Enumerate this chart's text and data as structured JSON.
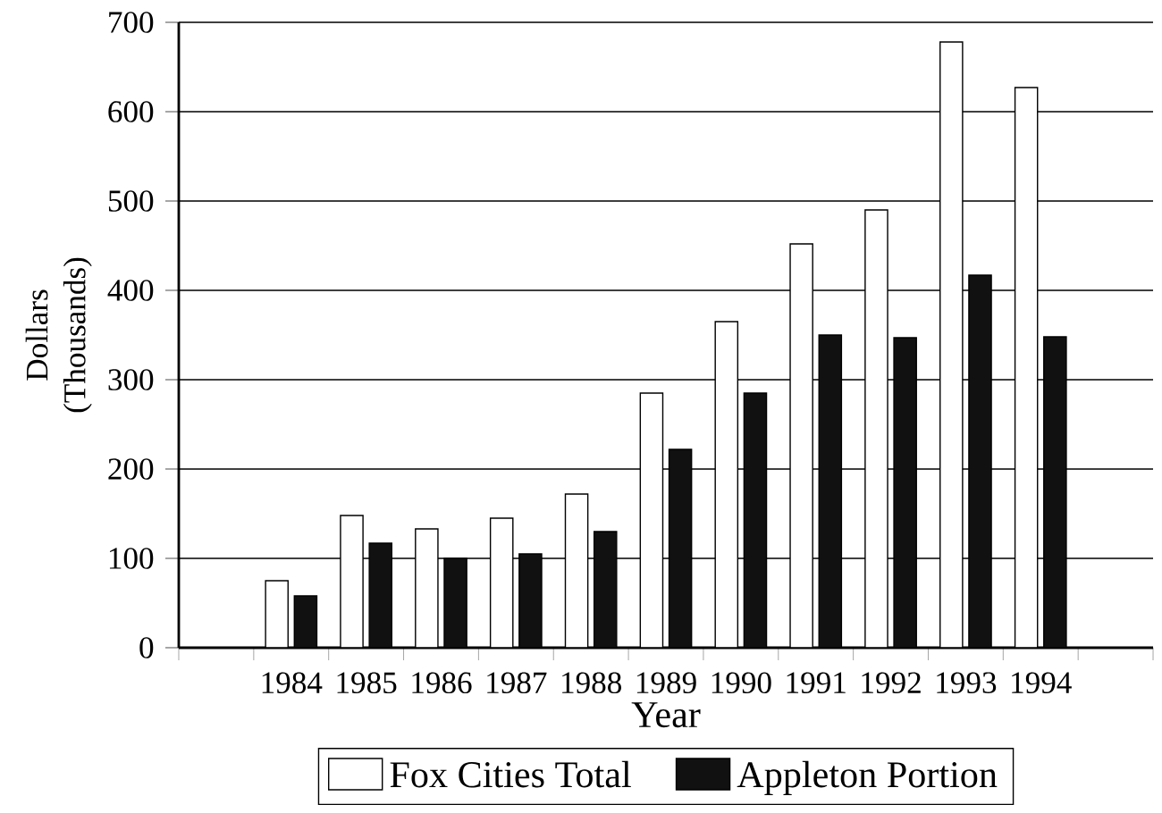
{
  "chart_data": {
    "type": "bar",
    "xlabel": "Year",
    "ylabel": "Dollars (Thousands)",
    "categories": [
      null,
      "1984",
      "1985",
      "1986",
      "1987",
      "1988",
      "1989",
      "1990",
      "1991",
      "1992",
      "1993",
      "1994",
      null
    ],
    "series": [
      {
        "name": "Fox Cities Total",
        "color": "#ffffff",
        "values": [
          null,
          75,
          148,
          133,
          145,
          172,
          285,
          365,
          452,
          490,
          678,
          627,
          null
        ]
      },
      {
        "name": "Appleton Portion",
        "color": "#111111",
        "values": [
          null,
          58,
          117,
          100,
          105,
          130,
          222,
          285,
          350,
          347,
          417,
          348,
          null
        ]
      }
    ],
    "ylim": [
      0,
      700
    ],
    "yticks": [
      0,
      100,
      200,
      300,
      400,
      500,
      600,
      700
    ],
    "grid": "y",
    "legend": "bottom"
  }
}
